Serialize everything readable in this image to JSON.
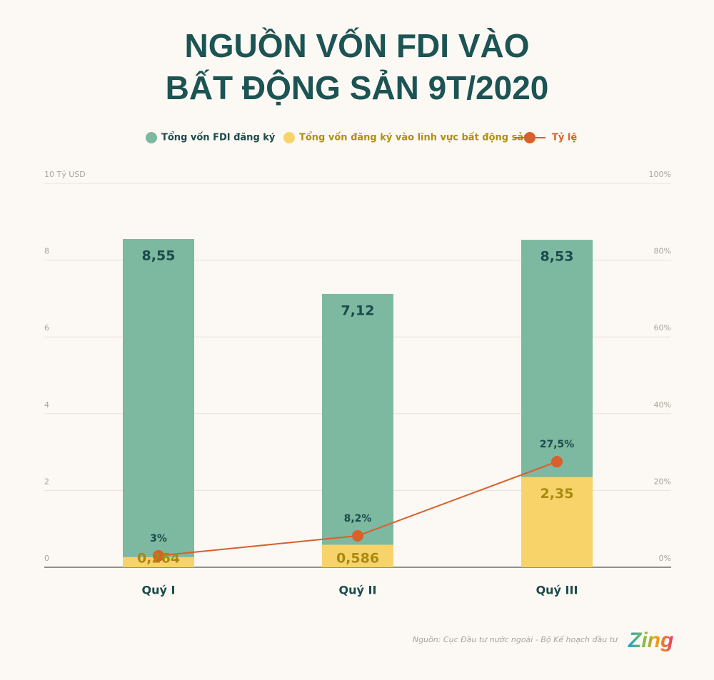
{
  "chart_data": {
    "type": "bar",
    "barmode": "overlay",
    "title": [
      "NGUỒN VỐN FDI VÀO",
      "BẤT ĐỘNG SẢN 9T/2020"
    ],
    "categories": [
      "Quý I",
      "Quý II",
      "Quý III"
    ],
    "series": [
      {
        "name": "Tổng vốn FDI đăng ký",
        "color": "#7db8a0",
        "values": [
          8.55,
          7.12,
          8.53
        ],
        "value_labels": [
          "8,55",
          "7,12",
          "8,53"
        ]
      },
      {
        "name": "Tổng vốn đăng ký vào lĩnh vực bất động sản",
        "color": "#f7d36a",
        "values": [
          0.264,
          0.586,
          2.35
        ],
        "value_labels": [
          "0,264",
          "0,586",
          "2,35"
        ]
      },
      {
        "name": "Tỷ lệ",
        "type": "line",
        "axis": "y2",
        "color": "#d9602b",
        "values": [
          3,
          8.2,
          27.5
        ],
        "value_labels": [
          "3%",
          "8,2%",
          "27,5%"
        ]
      }
    ],
    "ylim": [
      0,
      10
    ],
    "yticks": [
      0,
      2,
      4,
      6,
      8,
      {
        "value": 10,
        "label": "10 Tỷ USD"
      }
    ],
    "y2lim": [
      0,
      100
    ],
    "y2ticks": [
      {
        "value": 0,
        "label": "0%"
      },
      {
        "value": 20,
        "label": "20%"
      },
      {
        "value": 40,
        "label": "40%"
      },
      {
        "value": 60,
        "label": "60%"
      },
      {
        "value": 80,
        "label": "80%"
      },
      {
        "value": 100,
        "label": "100%"
      }
    ],
    "grid": true,
    "source": "Nguồn: Cục Đầu tư nước ngoài - Bộ Kế hoạch đầu tư",
    "logo": "Zing"
  }
}
